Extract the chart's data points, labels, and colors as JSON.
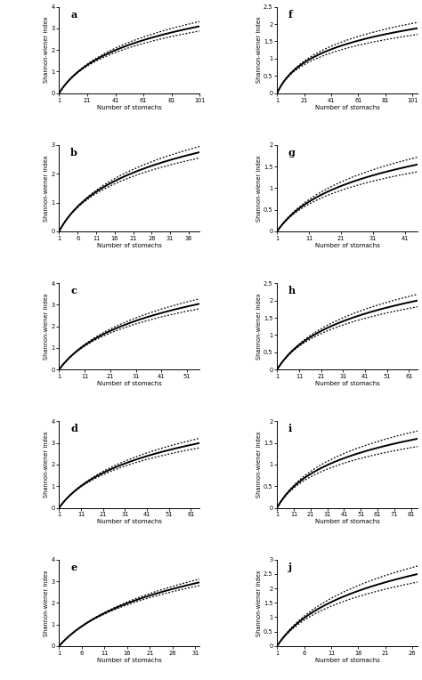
{
  "panels": [
    {
      "label": "a",
      "xmax": 101,
      "ymax": 4,
      "xticks": [
        1,
        21,
        41,
        61,
        81,
        101
      ],
      "yticks": [
        0,
        1,
        2,
        3,
        4
      ],
      "mean_asym": 3.1,
      "upper_asym": 3.32,
      "lower_asym": 2.88,
      "k": 0.07
    },
    {
      "label": "b",
      "xmax": 39,
      "ymax": 3,
      "xticks": [
        1,
        6,
        11,
        16,
        21,
        26,
        31,
        36
      ],
      "yticks": [
        0,
        1,
        2,
        3
      ],
      "mean_asym": 2.75,
      "upper_asym": 2.95,
      "lower_asym": 2.55,
      "k": 0.18
    },
    {
      "label": "c",
      "xmax": 56,
      "ymax": 4,
      "xticks": [
        1,
        11,
        21,
        31,
        41,
        51
      ],
      "yticks": [
        0,
        1,
        2,
        3,
        4
      ],
      "mean_asym": 3.05,
      "upper_asym": 3.28,
      "lower_asym": 2.82,
      "k": 0.1
    },
    {
      "label": "d",
      "xmax": 65,
      "ymax": 4,
      "xticks": [
        1,
        11,
        21,
        31,
        41,
        51,
        61
      ],
      "yticks": [
        0,
        1,
        2,
        3,
        4
      ],
      "mean_asym": 3.0,
      "upper_asym": 3.22,
      "lower_asym": 2.78,
      "k": 0.09
    },
    {
      "label": "e",
      "xmax": 32,
      "ymax": 4,
      "xticks": [
        1,
        6,
        11,
        16,
        21,
        26,
        31
      ],
      "yticks": [
        0,
        1,
        2,
        3,
        4
      ],
      "mean_asym": 2.95,
      "upper_asym": 3.1,
      "lower_asym": 2.8,
      "k": 0.13
    },
    {
      "label": "f",
      "xmax": 105,
      "ymax": 2.5,
      "xticks": [
        1,
        21,
        41,
        61,
        81,
        101
      ],
      "yticks": [
        0,
        0.5,
        1.0,
        1.5,
        2.0,
        2.5
      ],
      "mean_asym": 1.88,
      "upper_asym": 2.05,
      "lower_asym": 1.7,
      "k": 0.12
    },
    {
      "label": "g",
      "xmax": 45,
      "ymax": 2,
      "xticks": [
        1,
        11,
        21,
        31,
        41
      ],
      "yticks": [
        0,
        0.5,
        1.0,
        1.5,
        2.0
      ],
      "mean_asym": 1.55,
      "upper_asym": 1.72,
      "lower_asym": 1.38,
      "k": 0.14
    },
    {
      "label": "h",
      "xmax": 65,
      "ymax": 2.5,
      "xticks": [
        1,
        11,
        21,
        31,
        41,
        51,
        61
      ],
      "yticks": [
        0,
        0.5,
        1.0,
        1.5,
        2.0,
        2.5
      ],
      "mean_asym": 2.0,
      "upper_asym": 2.18,
      "lower_asym": 1.82,
      "k": 0.11
    },
    {
      "label": "i",
      "xmax": 85,
      "ymax": 2,
      "xticks": [
        1,
        11,
        21,
        31,
        41,
        51,
        61,
        71,
        81
      ],
      "yticks": [
        0,
        0.5,
        1.0,
        1.5,
        2.0
      ],
      "mean_asym": 1.6,
      "upper_asym": 1.78,
      "lower_asym": 1.42,
      "k": 0.1
    },
    {
      "label": "j",
      "xmax": 27,
      "ymax": 3,
      "xticks": [
        1,
        6,
        11,
        16,
        21,
        26
      ],
      "yticks": [
        0,
        0.5,
        1.0,
        1.5,
        2.0,
        2.5,
        3.0
      ],
      "mean_asym": 2.5,
      "upper_asym": 2.78,
      "lower_asym": 2.22,
      "k": 0.22
    }
  ],
  "ylabel": "Shannon-wiener index",
  "xlabel": "Number of stomachs",
  "bg_color": "#ffffff"
}
